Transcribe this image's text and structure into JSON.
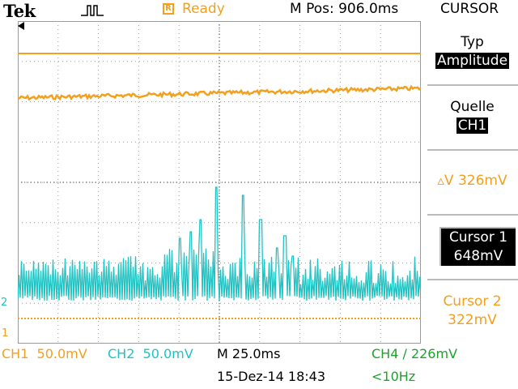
{
  "header": {
    "brand": "Tek",
    "trigger_icon": "trigger-pulse-icon",
    "status_icon_letter": "R",
    "status": "Ready",
    "position": "M Pos: 906.0ms",
    "menu_title": "CURSOR"
  },
  "side_menu": {
    "type_label": "Typ",
    "type_value": "Amplitude",
    "source_label": "Quelle",
    "source_value": "CH1",
    "delta": "▵V 326mV",
    "cursor1_label": "Cursor 1",
    "cursor1_value": "648mV",
    "cursor2_label": "Cursor 2",
    "cursor2_value": "322mV"
  },
  "channel_markers": {
    "ch2": "2",
    "ch1": "1"
  },
  "footer": {
    "ch1": "CH1  50.0mV",
    "ch2": "CH2  50.0mV",
    "timebase": "M 25.0ms",
    "trigger": "CH4 ∕ 226mV",
    "date": "15-Dez-14 18:43",
    "frequency": "<10Hz"
  },
  "colors": {
    "ch1": "#f2a01e",
    "ch2": "#21c2c2",
    "ch4": "#1fa12c",
    "grid": "#9a9a9a"
  }
}
